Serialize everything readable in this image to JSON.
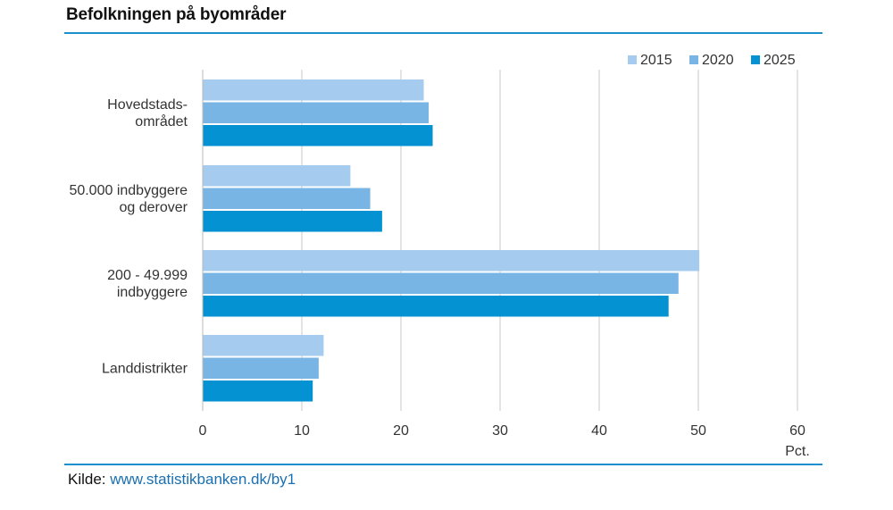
{
  "title": "Befolkningen på byområder",
  "source": {
    "prefix": "Kilde: ",
    "link": "www.statistikbanken.dk/by1"
  },
  "chart_data": {
    "type": "bar",
    "orientation": "horizontal",
    "categories": [
      [
        "Hovedstads-",
        "området"
      ],
      [
        "50.000 indbyggere",
        "og derover"
      ],
      [
        "200 - 49.999",
        "indbyggere"
      ],
      [
        "Landdistrikter"
      ]
    ],
    "series": [
      {
        "name": "2015",
        "color": "#a5ccee",
        "values": [
          22.3,
          14.9,
          50.1,
          12.2
        ]
      },
      {
        "name": "2020",
        "color": "#79b5e4",
        "values": [
          22.8,
          16.9,
          48.0,
          11.7
        ]
      },
      {
        "name": "2025",
        "color": "#0492d3",
        "values": [
          23.2,
          18.1,
          47.0,
          11.1
        ]
      }
    ],
    "xlim": [
      0,
      60
    ],
    "xticks": [
      0,
      10,
      20,
      30,
      40,
      50,
      60
    ],
    "xunit": "Pct.",
    "grid": true,
    "legend_position": "top-right"
  }
}
